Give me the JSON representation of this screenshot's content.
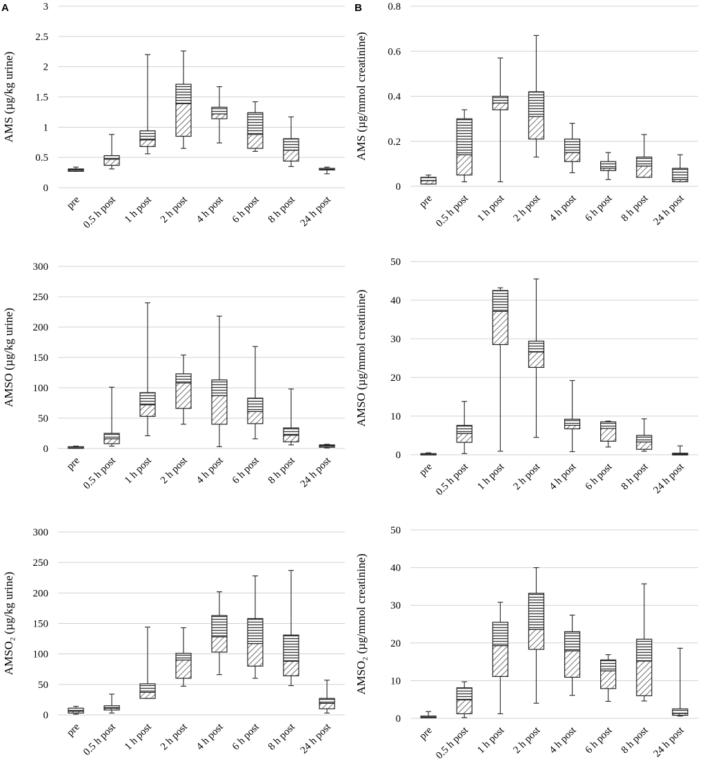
{
  "panel_labels": [
    "A",
    "B"
  ],
  "chart_data": [
    {
      "id": "a1",
      "type": "boxplot",
      "panel": "A",
      "ylabel": "AMS (µg/kg urine)",
      "ylim": [
        0,
        3
      ],
      "yticks": [
        0,
        0.5,
        1,
        1.5,
        2,
        2.5,
        3
      ],
      "ytick_labels": [
        "0",
        "0.5",
        "1",
        "1.5",
        "2",
        "2.5",
        "3"
      ],
      "categories": [
        "pre",
        "0.5 h post",
        "1 h post",
        "2 h post",
        "4 h post",
        "6 h post",
        "8 h post",
        "24 h post"
      ],
      "boxes": [
        {
          "min": 0.27,
          "q1": 0.27,
          "median": 0.29,
          "q3": 0.31,
          "max": 0.34
        },
        {
          "min": 0.31,
          "q1": 0.37,
          "median": 0.47,
          "q3": 0.53,
          "max": 0.88
        },
        {
          "min": 0.56,
          "q1": 0.68,
          "median": 0.79,
          "q3": 0.94,
          "max": 2.2
        },
        {
          "min": 0.65,
          "q1": 0.85,
          "median": 1.39,
          "q3": 1.71,
          "max": 2.26
        },
        {
          "min": 0.74,
          "q1": 1.14,
          "median": 1.22,
          "q3": 1.33,
          "max": 1.67
        },
        {
          "min": 0.6,
          "q1": 0.65,
          "median": 0.88,
          "q3": 1.24,
          "max": 1.42
        },
        {
          "min": 0.35,
          "q1": 0.44,
          "median": 0.62,
          "q3": 0.81,
          "max": 1.17
        },
        {
          "min": 0.23,
          "q1": 0.3,
          "median": 0.31,
          "q3": 0.32,
          "max": 0.34
        }
      ]
    },
    {
      "id": "b1",
      "type": "boxplot",
      "panel": "B",
      "ylabel": "AMS (µg/mmol creatinine)",
      "ylim": [
        0,
        0.8
      ],
      "yticks": [
        0,
        0.2,
        0.4,
        0.6,
        0.8
      ],
      "ytick_labels": [
        "0",
        "0.2",
        "0.4",
        "0.6",
        "0.8"
      ],
      "categories": [
        "pre",
        "0.5 h post",
        "1 h post",
        "2 h post",
        "4 h post",
        "6 h post",
        "8 h post",
        "24 h post"
      ],
      "boxes": [
        {
          "min": 0.01,
          "q1": 0.01,
          "median": 0.025,
          "q3": 0.04,
          "max": 0.05
        },
        {
          "min": 0.02,
          "q1": 0.05,
          "median": 0.14,
          "q3": 0.3,
          "max": 0.34
        },
        {
          "min": 0.02,
          "q1": 0.34,
          "median": 0.37,
          "q3": 0.4,
          "max": 0.57
        },
        {
          "min": 0.13,
          "q1": 0.21,
          "median": 0.31,
          "q3": 0.42,
          "max": 0.67
        },
        {
          "min": 0.06,
          "q1": 0.11,
          "median": 0.15,
          "q3": 0.21,
          "max": 0.28
        },
        {
          "min": 0.03,
          "q1": 0.07,
          "median": 0.08,
          "q3": 0.11,
          "max": 0.15
        },
        {
          "min": 0.04,
          "q1": 0.04,
          "median": 0.09,
          "q3": 0.13,
          "max": 0.23
        },
        {
          "min": 0.02,
          "q1": 0.02,
          "median": 0.03,
          "q3": 0.08,
          "max": 0.14
        }
      ]
    },
    {
      "id": "a2",
      "type": "boxplot",
      "panel": "A",
      "ylabel": "AMSO (µg/kg urine)",
      "ylim": [
        0,
        300
      ],
      "yticks": [
        0,
        50,
        100,
        150,
        200,
        250,
        300
      ],
      "ytick_labels": [
        "0",
        "50",
        "100",
        "150",
        "200",
        "250",
        "300"
      ],
      "categories": [
        "pre",
        "0.5 h post",
        "1 h post",
        "2 h post",
        "4 h post",
        "6 h post",
        "8 h post",
        "24 h post"
      ],
      "boxes": [
        {
          "min": 1,
          "q1": 1,
          "median": 2,
          "q3": 3,
          "max": 4
        },
        {
          "min": 4,
          "q1": 8,
          "median": 16,
          "q3": 25,
          "max": 101
        },
        {
          "min": 21,
          "q1": 53,
          "median": 72,
          "q3": 92,
          "max": 240
        },
        {
          "min": 40,
          "q1": 66,
          "median": 108,
          "q3": 123,
          "max": 154
        },
        {
          "min": 3,
          "q1": 40,
          "median": 87,
          "q3": 113,
          "max": 218
        },
        {
          "min": 16,
          "q1": 41,
          "median": 61,
          "q3": 83,
          "max": 168
        },
        {
          "min": 6,
          "q1": 11,
          "median": 22,
          "q3": 34,
          "max": 98
        },
        {
          "min": 1,
          "q1": 2,
          "median": 4,
          "q3": 6,
          "max": 7
        }
      ]
    },
    {
      "id": "b2",
      "type": "boxplot",
      "panel": "B",
      "ylabel": "AMSO (µg/mmol creatinine)",
      "ylim": [
        0,
        50
      ],
      "yticks": [
        0,
        10,
        20,
        30,
        40,
        50
      ],
      "ytick_labels": [
        "0",
        "10",
        "20",
        "30",
        "40",
        "50"
      ],
      "categories": [
        "pre",
        "0.5 h post",
        "1 h post",
        "2 h post",
        "4 h post",
        "6 h post",
        "8 h post",
        "24 h post"
      ],
      "boxes": [
        {
          "min": 0.1,
          "q1": 0.1,
          "median": 0.2,
          "q3": 0.3,
          "max": 0.5
        },
        {
          "min": 0.3,
          "q1": 3.2,
          "median": 5.5,
          "q3": 7.6,
          "max": 13.8
        },
        {
          "min": 0.9,
          "q1": 28.5,
          "median": 37.1,
          "q3": 42.5,
          "max": 43.2
        },
        {
          "min": 4.5,
          "q1": 22.6,
          "median": 26.6,
          "q3": 29.4,
          "max": 45.5
        },
        {
          "min": 0.8,
          "q1": 6.7,
          "median": 7.6,
          "q3": 9.2,
          "max": 19.2
        },
        {
          "min": 2.0,
          "q1": 3.5,
          "median": 6.8,
          "q3": 8.5,
          "max": 8.7
        },
        {
          "min": 0.9,
          "q1": 1.4,
          "median": 3.3,
          "q3": 5.0,
          "max": 9.3
        },
        {
          "min": 0.1,
          "q1": 0.1,
          "median": 0.2,
          "q3": 0.4,
          "max": 2.3
        }
      ]
    },
    {
      "id": "a3",
      "type": "boxplot",
      "panel": "A",
      "ylabel": "AMSO₂ (µg/kg urine)",
      "ylim": [
        0,
        300
      ],
      "yticks": [
        0,
        50,
        100,
        150,
        200,
        250,
        300
      ],
      "ytick_labels": [
        "0",
        "50",
        "100",
        "150",
        "200",
        "250",
        "300"
      ],
      "categories": [
        "pre",
        "0.5 h post",
        "1 h post",
        "2 h post",
        "4 h post",
        "6 h post",
        "8 h post",
        "24 h post"
      ],
      "boxes": [
        {
          "min": 1,
          "q1": 3,
          "median": 6,
          "q3": 11,
          "max": 14
        },
        {
          "min": 3,
          "q1": 8,
          "median": 11,
          "q3": 15,
          "max": 34
        },
        {
          "min": 27,
          "q1": 27,
          "median": 37,
          "q3": 51,
          "max": 144
        },
        {
          "min": 47,
          "q1": 60,
          "median": 90,
          "q3": 101,
          "max": 143
        },
        {
          "min": 66,
          "q1": 103,
          "median": 128,
          "q3": 163,
          "max": 202
        },
        {
          "min": 60,
          "q1": 80,
          "median": 117,
          "q3": 158,
          "max": 228
        },
        {
          "min": 48,
          "q1": 64,
          "median": 88,
          "q3": 131,
          "max": 237
        },
        {
          "min": 3,
          "q1": 10,
          "median": 19,
          "q3": 27,
          "max": 57
        }
      ]
    },
    {
      "id": "b3",
      "type": "boxplot",
      "panel": "B",
      "ylabel": "AMSO₂ (µg/mmol creatinine)",
      "ylim": [
        0,
        50
      ],
      "yticks": [
        0,
        10,
        20,
        30,
        40,
        50
      ],
      "ytick_labels": [
        "0",
        "10",
        "20",
        "30",
        "40",
        "50"
      ],
      "categories": [
        "pre",
        "0.5 h post",
        "1 h post",
        "2 h post",
        "4 h post",
        "6 h post",
        "8 h post",
        "24 h post"
      ],
      "boxes": [
        {
          "min": 0.2,
          "q1": 0.2,
          "median": 0.4,
          "q3": 0.6,
          "max": 1.8
        },
        {
          "min": 0.2,
          "q1": 1.2,
          "median": 4.9,
          "q3": 8.1,
          "max": 9.7
        },
        {
          "min": 1.2,
          "q1": 11.1,
          "median": 19.3,
          "q3": 25.5,
          "max": 30.8
        },
        {
          "min": 4.0,
          "q1": 18.3,
          "median": 23.6,
          "q3": 33.2,
          "max": 40.0
        },
        {
          "min": 6.1,
          "q1": 10.9,
          "median": 17.9,
          "q3": 23.0,
          "max": 27.4
        },
        {
          "min": 4.5,
          "q1": 7.9,
          "median": 12.6,
          "q3": 15.5,
          "max": 16.9
        },
        {
          "min": 4.6,
          "q1": 6.0,
          "median": 15.2,
          "q3": 21.0,
          "max": 35.7
        },
        {
          "min": 0.6,
          "q1": 0.8,
          "median": 1.3,
          "q3": 2.5,
          "max": 18.6
        }
      ]
    }
  ]
}
